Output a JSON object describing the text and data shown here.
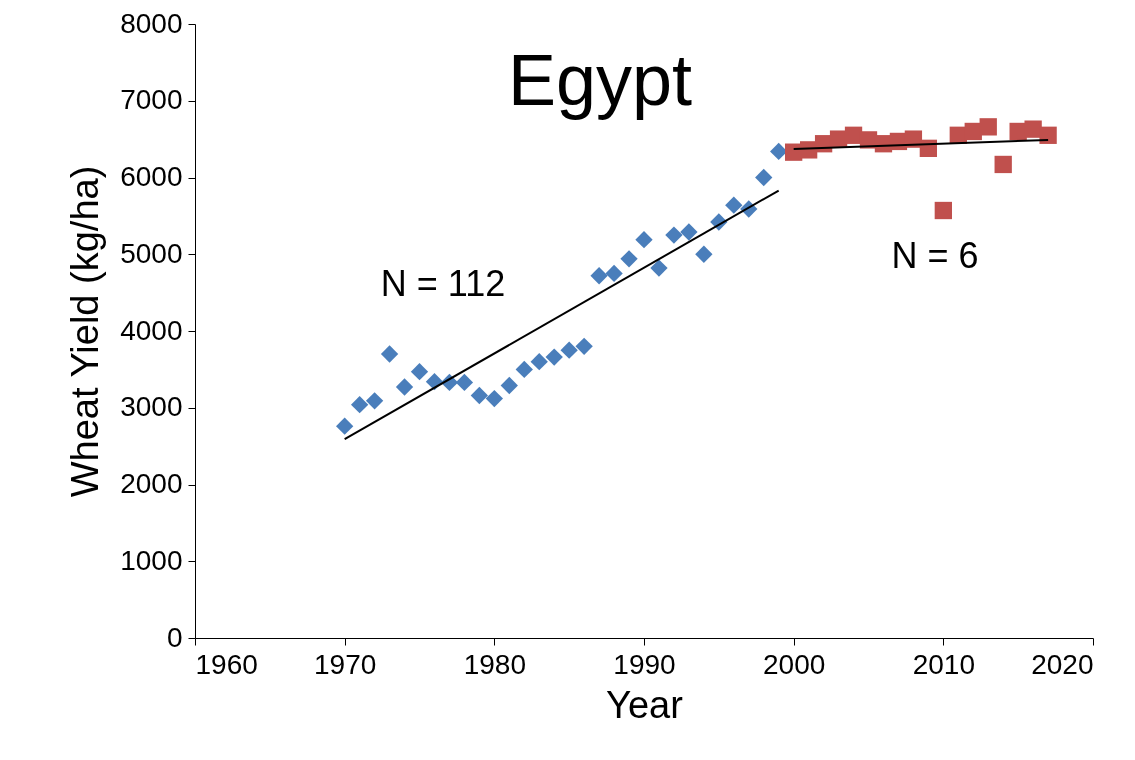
{
  "chart_data": {
    "type": "scatter",
    "title": "Egypt",
    "xlabel": "Year",
    "ylabel": "Wheat Yield (kg/ha)",
    "xlim": [
      1960,
      2020
    ],
    "xticks": [
      1960,
      1970,
      1980,
      1990,
      2000,
      2010,
      2020
    ],
    "ylim": [
      0,
      8000
    ],
    "yticks": [
      0,
      1000,
      2000,
      3000,
      4000,
      5000,
      6000,
      7000,
      8000
    ],
    "annotations": [
      "N = 112",
      "N = 6"
    ],
    "series": [
      {
        "marker": "diamond",
        "color": "#4a7ebb",
        "x": [
          1970,
          1971,
          1972,
          1973,
          1974,
          1975,
          1976,
          1977,
          1978,
          1979,
          1980,
          1981,
          1982,
          1983,
          1984,
          1985,
          1986,
          1987,
          1988,
          1989,
          1990,
          1991,
          1992,
          1993,
          1994,
          1995,
          1996,
          1997,
          1998,
          1999
        ],
        "values": [
          2760,
          3040,
          3090,
          3700,
          3270,
          3470,
          3340,
          3330,
          3330,
          3160,
          3120,
          3290,
          3500,
          3600,
          3660,
          3750,
          3800,
          4720,
          4750,
          4940,
          5190,
          4820,
          5250,
          5290,
          5000,
          5420,
          5640,
          5590,
          6000,
          6340
        ]
      },
      {
        "marker": "square",
        "color": "#c0504d",
        "x": [
          2000,
          2001,
          2002,
          2003,
          2004,
          2005,
          2006,
          2007,
          2008,
          2009,
          2010,
          2011,
          2012,
          2013,
          2014,
          2015,
          2016,
          2017
        ],
        "values": [
          6330,
          6360,
          6440,
          6500,
          6550,
          6490,
          6440,
          6470,
          6500,
          6380,
          5570,
          6550,
          6600,
          6660,
          6170,
          6600,
          6630,
          6550
        ]
      },
      {
        "type": "line",
        "marker": "none",
        "line_style": "solid",
        "color": "#000000",
        "x": [
          1970,
          1999
        ],
        "values": [
          2590,
          5830
        ]
      },
      {
        "type": "line",
        "marker": "none",
        "line_style": "solid",
        "color": "#000000",
        "x": [
          2000,
          2017
        ],
        "values": [
          6370,
          6490
        ]
      }
    ]
  }
}
